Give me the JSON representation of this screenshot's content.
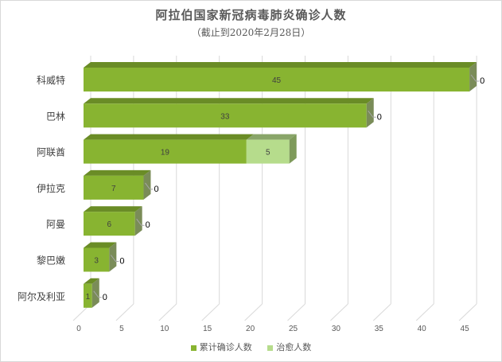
{
  "chart_data": {
    "type": "bar",
    "orientation": "horizontal",
    "stacked": true,
    "three_d": true,
    "title": "阿拉伯国家新冠病毒肺炎确诊人数",
    "subtitle": "（截止到2020年2月28日）",
    "categories": [
      "科威特",
      "巴林",
      "阿联酋",
      "伊拉克",
      "阿曼",
      "黎巴嫩",
      "阿尔及利亚"
    ],
    "series": [
      {
        "name": "累计确诊人数",
        "values": [
          45,
          33,
          19,
          7,
          6,
          3,
          1
        ],
        "color": "#88b431"
      },
      {
        "name": "治愈人数",
        "values": [
          0,
          0,
          5,
          0,
          0,
          0,
          0
        ],
        "color": "#b6dc8c"
      }
    ],
    "xlim": [
      0,
      45
    ],
    "xticks": [
      0,
      5,
      10,
      15,
      20,
      25,
      30,
      35,
      40,
      45
    ],
    "grid": true,
    "legend_position": "bottom"
  }
}
